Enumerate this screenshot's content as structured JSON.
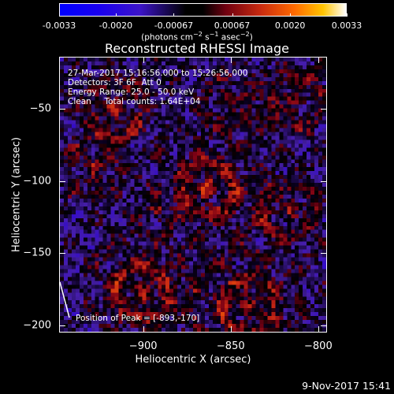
{
  "colorbar": {
    "ticks": [
      "-0.0033",
      "-0.0020",
      "-0.00067",
      "0.00067",
      "0.0020",
      "0.0033"
    ],
    "tick_values": [
      -0.0033,
      -0.002,
      -0.00067,
      0.00067,
      0.002,
      0.0033
    ],
    "range": [
      -0.0033,
      0.0033
    ]
  },
  "chart_data": {
    "type": "heatmap",
    "title": "Reconstructed RHESSI Image",
    "xlabel": "Heliocentric X (arcsec)",
    "ylabel": "Heliocentric Y (arcsec)",
    "xlim": [
      -948,
      -795
    ],
    "ylim": [
      -205,
      -14
    ],
    "xticks": [
      -900,
      -850,
      -800
    ],
    "xtick_labels": [
      "−900",
      "−850",
      "−800"
    ],
    "yticks": [
      -50,
      -100,
      -150,
      -200
    ],
    "ytick_labels": [
      "−50",
      "−100",
      "−150",
      "−200"
    ],
    "colorbar_unit": "(photons cm-2 s-1 asec-2)",
    "peak": {
      "x": -893,
      "y": -170
    },
    "annotations": [
      "27-Mar-2017 15:16:56.000 to 15:26:56.000",
      "Detectors: 3F 6F  Att 0",
      "Energy Range: 25.0 - 50.0 keV",
      "Clean     Total counts: 1.64E+04"
    ],
    "peak_label": "Position of Peak = [-893,-170]"
  },
  "footer": {
    "timestamp": "9-Nov-2017 15:41"
  }
}
